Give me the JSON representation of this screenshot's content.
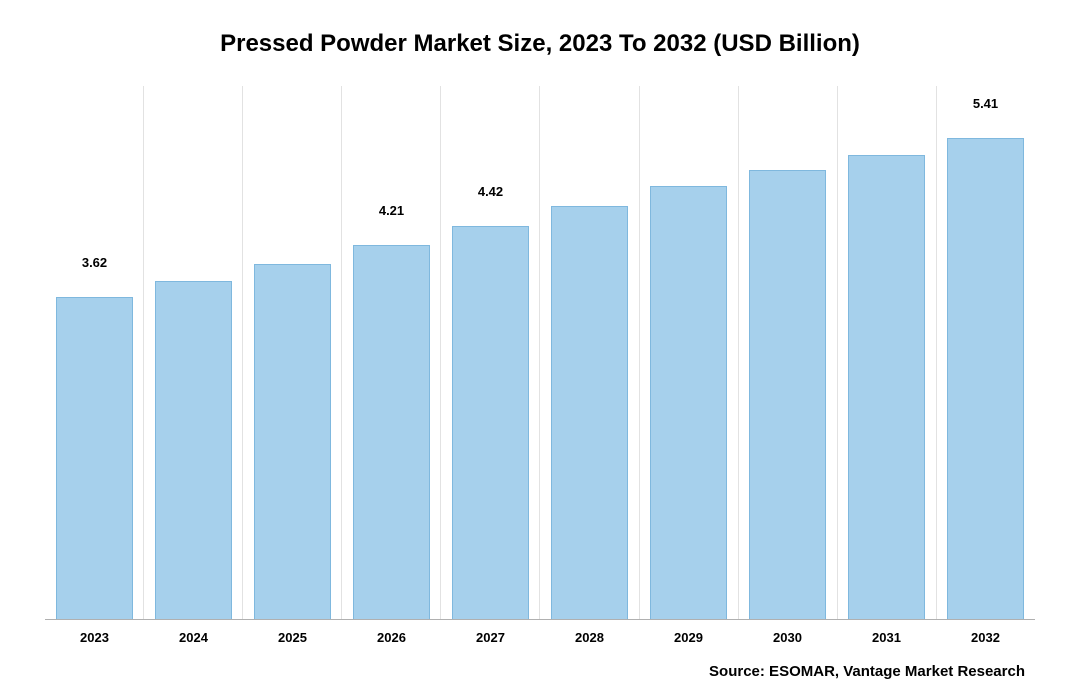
{
  "chart": {
    "type": "bar",
    "title": "Pressed Powder Market Size, 2023 To 2032 (USD Billion)",
    "title_fontsize": 24,
    "categories": [
      "2023",
      "2024",
      "2025",
      "2026",
      "2027",
      "2028",
      "2029",
      "2030",
      "2031",
      "2032"
    ],
    "values": [
      3.62,
      3.8,
      4.0,
      4.21,
      4.42,
      4.65,
      4.88,
      5.05,
      5.22,
      5.41
    ],
    "labels": [
      "3.62",
      "",
      "",
      "4.21",
      "4.42",
      "",
      "",
      "",
      "",
      "5.41"
    ],
    "ylim": [
      0,
      6.0
    ],
    "bar_color": "#a6d0ec",
    "bar_border_color": "#7fb8de",
    "bar_width_pct": 78,
    "grid_color": "#e2e2e2",
    "axis_line_color": "#b0b0b0",
    "background_color": "#ffffff",
    "label_fontsize": 13,
    "tick_fontsize": 13,
    "source_fontsize": 15
  },
  "source_text": "Source: ESOMAR, Vantage Market Research"
}
